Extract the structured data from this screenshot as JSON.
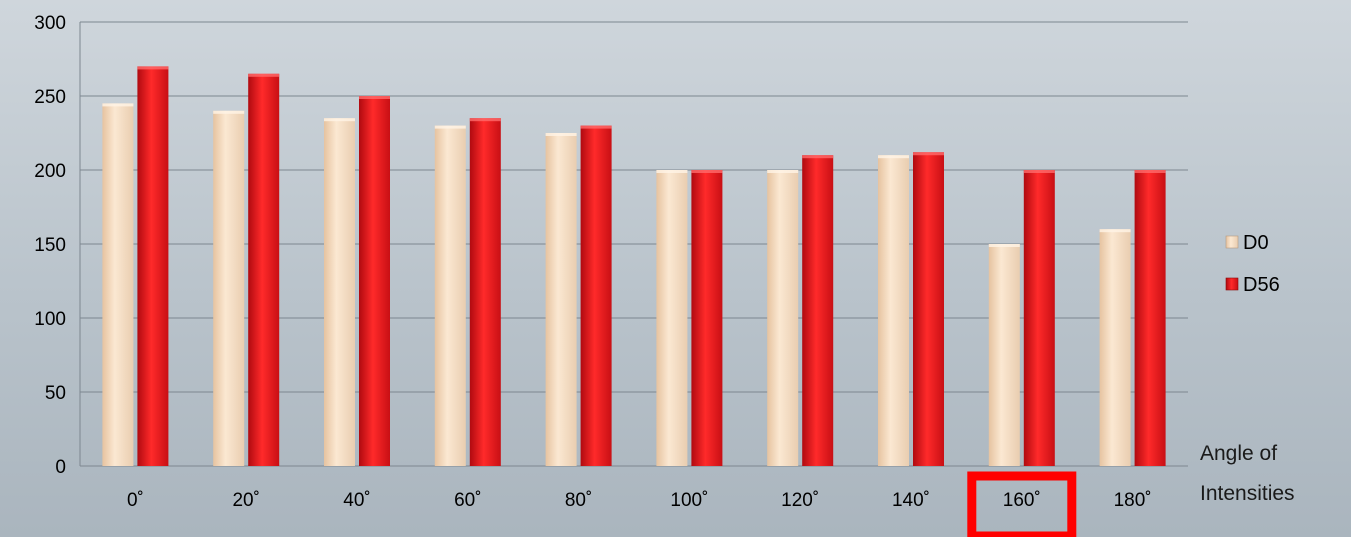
{
  "chart_data": {
    "type": "bar",
    "categories": [
      "0˚",
      "20˚",
      "40˚",
      "60˚",
      "80˚",
      "100˚",
      "120˚",
      "140˚",
      "160˚",
      "180˚"
    ],
    "series": [
      {
        "name": "D0",
        "values": [
          245,
          240,
          235,
          230,
          225,
          200,
          200,
          210,
          150,
          160
        ],
        "color": "#f6dcc0"
      },
      {
        "name": "D56",
        "values": [
          270,
          265,
          250,
          235,
          230,
          200,
          210,
          212,
          200,
          200
        ],
        "color": "#e8141a"
      }
    ],
    "y_ticks": [
      "0",
      "50",
      "100",
      "150",
      "200",
      "250",
      "300"
    ],
    "ylim": [
      0,
      300
    ],
    "xlabel": "Angle of Intensities",
    "xlabel_lines": [
      "Angle of",
      "Intensities"
    ],
    "grid": true,
    "legend_position": "right",
    "highlighted_category": "160˚",
    "highlight_color": "#ff0000"
  }
}
